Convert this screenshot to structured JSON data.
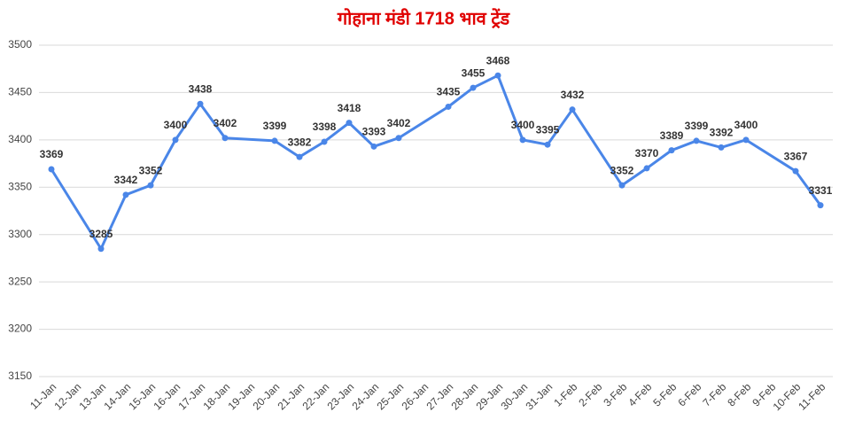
{
  "chart_data": {
    "type": "line",
    "title": "गोहाना मंडी 1718 भाव ट्रेंड",
    "categories": [
      "11-Jan",
      "12-Jan",
      "13-Jan",
      "14-Jan",
      "15-Jan",
      "16-Jan",
      "17-Jan",
      "18-Jan",
      "19-Jan",
      "20-Jan",
      "21-Jan",
      "22-Jan",
      "23-Jan",
      "24-Jan",
      "25-Jan",
      "26-Jan",
      "27-Jan",
      "28-Jan",
      "29-Jan",
      "30-Jan",
      "31-Jan",
      "1-Feb",
      "2-Feb",
      "3-Feb",
      "4-Feb",
      "5-Feb",
      "6-Feb",
      "7-Feb",
      "8-Feb",
      "9-Feb",
      "10-Feb",
      "11-Feb"
    ],
    "series": [
      {
        "color": "#4a86e8",
        "x": [
          "11-Jan",
          "13-Jan",
          "14-Jan",
          "15-Jan",
          "16-Jan",
          "17-Jan",
          "18-Jan",
          "20-Jan",
          "21-Jan",
          "22-Jan",
          "23-Jan",
          "24-Jan",
          "25-Jan",
          "27-Jan",
          "28-Jan",
          "29-Jan",
          "30-Jan",
          "31-Jan",
          "1-Feb",
          "3-Feb",
          "4-Feb",
          "5-Feb",
          "6-Feb",
          "7-Feb",
          "8-Feb",
          "10-Feb",
          "11-Feb"
        ],
        "values": [
          3369,
          3285,
          3342,
          3352,
          3400,
          3438,
          3402,
          3399,
          3382,
          3398,
          3418,
          3393,
          3402,
          3435,
          3455,
          3468,
          3400,
          3395,
          3432,
          3352,
          3370,
          3389,
          3399,
          3392,
          3400,
          3367,
          3331
        ]
      }
    ],
    "ylim": [
      3150,
      3500
    ],
    "yticks": [
      3150,
      3200,
      3250,
      3300,
      3350,
      3400,
      3450,
      3500
    ],
    "grid": true
  }
}
